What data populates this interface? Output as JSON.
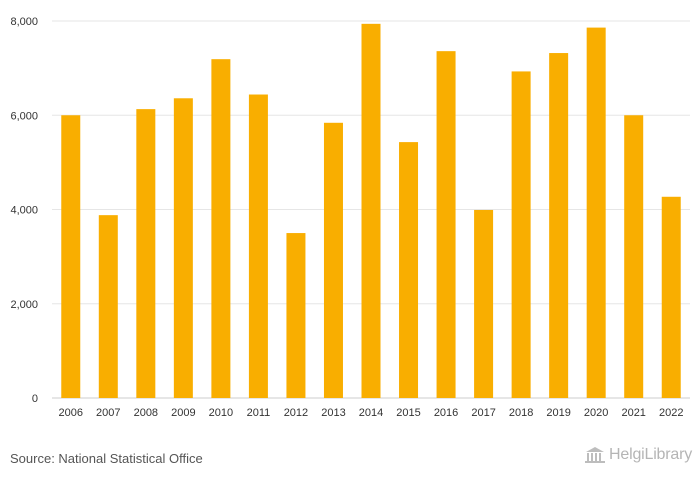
{
  "chart_data": {
    "type": "bar",
    "categories": [
      "2006",
      "2007",
      "2008",
      "2009",
      "2010",
      "2011",
      "2012",
      "2013",
      "2014",
      "2015",
      "2016",
      "2017",
      "2018",
      "2019",
      "2020",
      "2021",
      "2022"
    ],
    "values": [
      6000,
      3880,
      6130,
      6360,
      7190,
      6440,
      3500,
      5840,
      7940,
      5430,
      7360,
      3990,
      6930,
      7320,
      7860,
      6000,
      4270
    ],
    "ylim": [
      0,
      8000
    ],
    "yticks": [
      0,
      2000,
      4000,
      6000,
      8000
    ],
    "ytick_labels": [
      "0",
      "2,000",
      "4,000",
      "6,000",
      "8,000"
    ],
    "grid": true,
    "bar_color": "#F9AE00"
  },
  "footer": {
    "source": "Source: National Statistical Office",
    "logo_text": "HelgiLibrary"
  }
}
